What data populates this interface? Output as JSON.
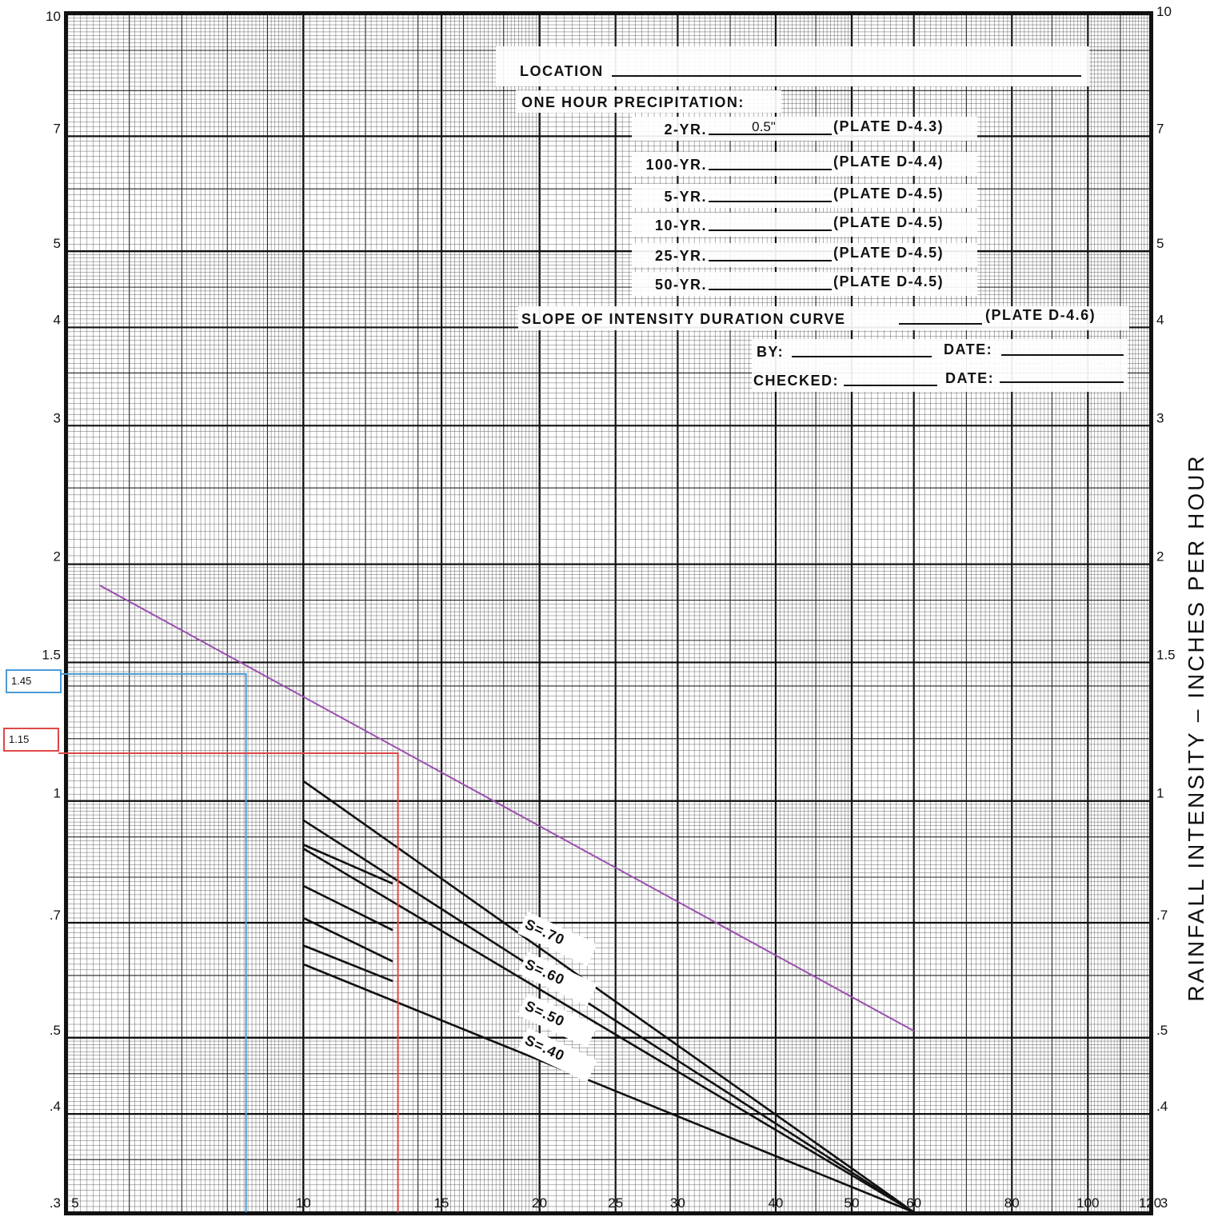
{
  "chart_data": {
    "type": "line",
    "title": "",
    "xlabel": "",
    "ylabel": "RAINFALL  INTENSITY – INCHES  PER  HOUR",
    "x_scale": "log",
    "y_scale": "log",
    "xlim": [
      5,
      120
    ],
    "ylim": [
      0.3,
      10
    ],
    "grid": true,
    "x_ticks": [
      {
        "value": 5,
        "label": "5"
      },
      {
        "value": 10,
        "label": "10"
      },
      {
        "value": 15,
        "label": "15"
      },
      {
        "value": 20,
        "label": "20"
      },
      {
        "value": 25,
        "label": "25"
      },
      {
        "value": 30,
        "label": "30"
      },
      {
        "value": 40,
        "label": "40"
      },
      {
        "value": 50,
        "label": "50"
      },
      {
        "value": 60,
        "label": "60"
      },
      {
        "value": 80,
        "label": "80"
      },
      {
        "value": 100,
        "label": "100"
      },
      {
        "value": 120,
        "label": "120"
      }
    ],
    "y_ticks_left": [
      {
        "value": 0.3,
        "label": ".3"
      },
      {
        "value": 0.4,
        "label": ".4"
      },
      {
        "value": 0.5,
        "label": ".5"
      },
      {
        "value": 0.7,
        "label": ".7"
      },
      {
        "value": 1,
        "label": "1"
      },
      {
        "value": 1.5,
        "label": "1.5"
      },
      {
        "value": 2,
        "label": "2"
      },
      {
        "value": 3,
        "label": "3"
      },
      {
        "value": 4,
        "label": "4"
      },
      {
        "value": 5,
        "label": "5"
      },
      {
        "value": 7,
        "label": "7"
      },
      {
        "value": 10,
        "label": "10"
      }
    ],
    "y_ticks_right": [
      {
        "value": 0.3,
        "label": ".3"
      },
      {
        "value": 0.4,
        "label": ".4"
      },
      {
        "value": 0.5,
        "label": ".5"
      },
      {
        "value": 0.7,
        "label": ".7"
      },
      {
        "value": 1,
        "label": "1"
      },
      {
        "value": 1.5,
        "label": "1.5"
      },
      {
        "value": 2,
        "label": "2"
      },
      {
        "value": 3,
        "label": "3"
      },
      {
        "value": 4,
        "label": "4"
      },
      {
        "value": 5,
        "label": "5"
      },
      {
        "value": 7,
        "label": "7"
      },
      {
        "value": 10,
        "label": "10"
      }
    ],
    "series": [
      {
        "key": "s70",
        "name": "S=.70",
        "color": "#111111",
        "points": [
          [
            10,
            1.06
          ],
          [
            60,
            0.3
          ]
        ]
      },
      {
        "key": "s60",
        "name": "S=.60",
        "color": "#111111",
        "points": [
          [
            10,
            0.945
          ],
          [
            60,
            0.3
          ]
        ]
      },
      {
        "key": "s50",
        "name": "S=.50",
        "color": "#111111",
        "points": [
          [
            10,
            0.87
          ],
          [
            60,
            0.3
          ]
        ]
      },
      {
        "key": "s40",
        "name": "S=.40",
        "color": "#111111",
        "points": [
          [
            10,
            0.62
          ],
          [
            60,
            0.3
          ]
        ]
      },
      {
        "key": "short1",
        "color": "#111111",
        "points": [
          [
            10,
            0.88
          ],
          [
            13,
            0.785
          ]
        ]
      },
      {
        "key": "short2",
        "color": "#111111",
        "points": [
          [
            10,
            0.78
          ],
          [
            13,
            0.685
          ]
        ]
      },
      {
        "key": "short3",
        "color": "#111111",
        "points": [
          [
            10,
            0.71
          ],
          [
            13,
            0.625
          ]
        ]
      },
      {
        "key": "short4",
        "color": "#111111",
        "points": [
          [
            10,
            0.655
          ],
          [
            13,
            0.59
          ]
        ]
      },
      {
        "key": "purple",
        "color": "#9b4fb0",
        "points": [
          [
            5.5,
            1.88
          ],
          [
            60,
            0.51
          ]
        ]
      }
    ],
    "slope_labels": [
      "S=.70",
      "S=.60",
      "S=.50",
      "S=.40"
    ],
    "annotations": [
      {
        "key": "blue",
        "label": "1.45",
        "x": 8.45,
        "y": 1.45,
        "color": "#4a9ad6"
      },
      {
        "key": "red",
        "label": "1.15",
        "x": 13.2,
        "y": 1.15,
        "color": "#e04646"
      }
    ],
    "purple_color": "#9b4fb0"
  },
  "form": {
    "location_label": "LOCATION",
    "one_hour_label": "ONE HOUR PRECIPITATION:",
    "rows": [
      {
        "label": "2-YR.",
        "value": "0.5\"",
        "plate": "(PLATE  D-4.3)"
      },
      {
        "label": "100-YR.",
        "value": "",
        "plate": "(PLATE  D-4.4)"
      },
      {
        "label": "5-YR.",
        "value": "",
        "plate": "(PLATE  D-4.5)"
      },
      {
        "label": "10-YR.",
        "value": "",
        "plate": "(PLATE  D-4.5)"
      },
      {
        "label": "25-YR.",
        "value": "",
        "plate": "(PLATE  D-4.5)"
      },
      {
        "label": "50-YR.",
        "value": "",
        "plate": "(PLATE  D-4.5)"
      }
    ],
    "slope_label": "SLOPE  OF  INTENSITY  DURATION  CURVE",
    "slope_plate": "(PLATE  D-4.6)",
    "by_label": "BY:",
    "checked_label": "CHECKED:",
    "date_label": "DATE:"
  }
}
